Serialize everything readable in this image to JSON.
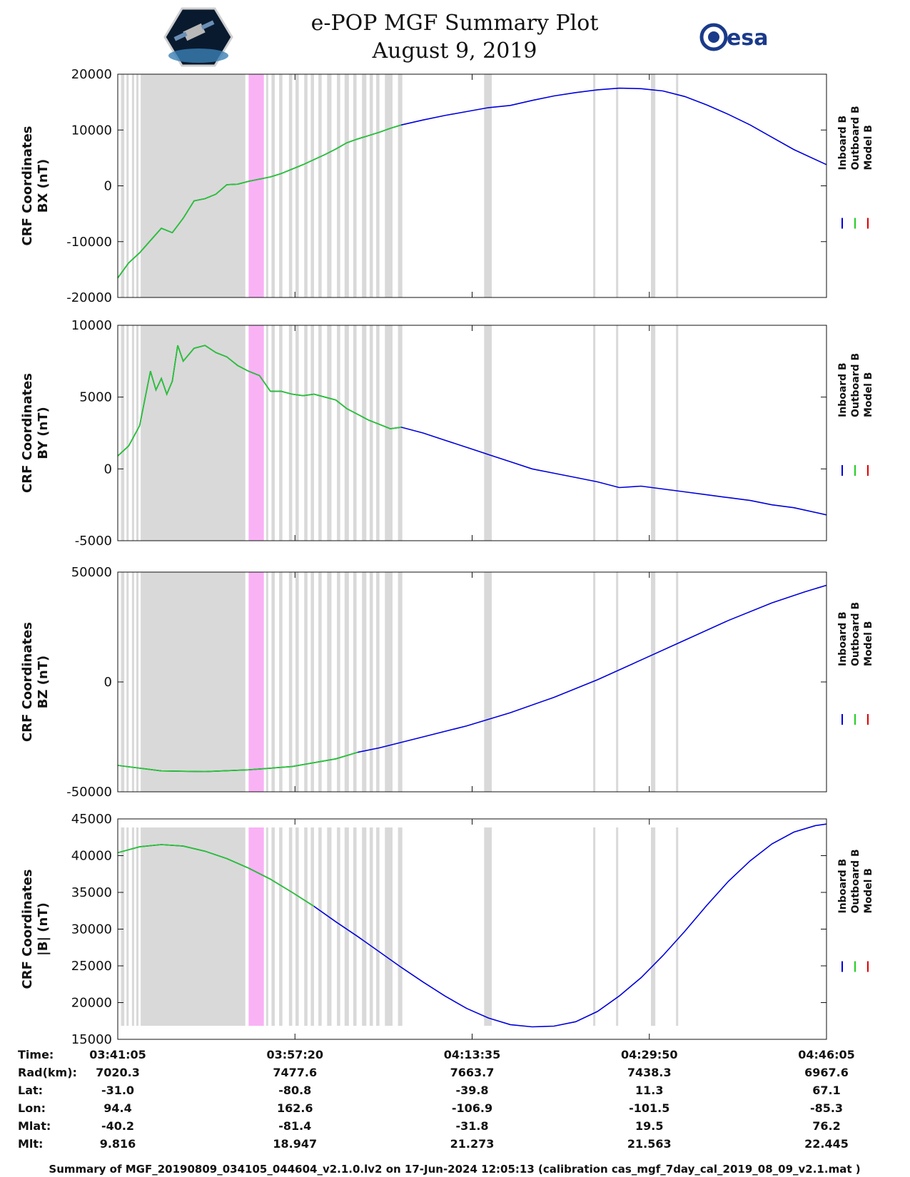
{
  "title": "e-POP MGF Summary Plot",
  "date": "August 9, 2019",
  "esa_logo_text": "esa",
  "colors": {
    "inboard": "#0000dd",
    "outboard": "#22cc22",
    "model": "#dd0000",
    "gap_band": "#d9d9d9",
    "highlight_band": "#f9b3f5"
  },
  "legend": [
    "Inboard B",
    "Outboard B",
    "Model B"
  ],
  "chart_data": [
    {
      "type": "line",
      "ylabel_line1": "CRF Coordinates",
      "ylabel_line2": "BX (nT)",
      "ylim": [
        -20000,
        20000
      ],
      "yticks": [
        -20000,
        -10000,
        0,
        10000,
        20000
      ],
      "green_end_minute": 26,
      "x": [
        0,
        1,
        2,
        3,
        4,
        5,
        6,
        7,
        8,
        9,
        10,
        11,
        12,
        13,
        14,
        15,
        16,
        17,
        18,
        19,
        20,
        21,
        22,
        23,
        24,
        25,
        26,
        28,
        30,
        32,
        34,
        36,
        38,
        40,
        42,
        44,
        46,
        48,
        50,
        52,
        54,
        56,
        58,
        60,
        62,
        65
      ],
      "y": [
        -16500,
        -13800,
        -12000,
        -9800,
        -7600,
        -8400,
        -5800,
        -2700,
        -2300,
        -1500,
        200,
        300,
        800,
        1200,
        1600,
        2200,
        3000,
        3800,
        4700,
        5600,
        6600,
        7700,
        8400,
        9000,
        9600,
        10300,
        10900,
        11800,
        12600,
        13300,
        14000,
        14400,
        15300,
        16100,
        16700,
        17200,
        17500,
        17400,
        17000,
        16000,
        14500,
        12800,
        10900,
        8700,
        6500,
        3800
      ]
    },
    {
      "type": "line",
      "ylabel_line1": "CRF Coordinates",
      "ylabel_line2": "BY (nT)",
      "ylim": [
        -5000,
        10000
      ],
      "yticks": [
        -5000,
        0,
        5000,
        10000
      ],
      "green_end_minute": 26,
      "x": [
        0,
        1,
        2,
        3,
        3.5,
        4,
        4.5,
        5,
        5.5,
        6,
        7,
        8,
        9,
        10,
        11,
        12,
        13,
        14,
        15,
        16,
        17,
        18,
        19,
        20,
        21,
        22,
        23,
        24,
        25,
        26,
        28,
        30,
        32,
        34,
        36,
        38,
        40,
        42,
        44,
        46,
        48,
        50,
        52,
        54,
        56,
        58,
        60,
        62,
        65
      ],
      "y": [
        900,
        1600,
        3000,
        6800,
        5500,
        6300,
        5200,
        6100,
        8600,
        7500,
        8400,
        8600,
        8100,
        7800,
        7200,
        6800,
        6500,
        5400,
        5400,
        5200,
        5100,
        5200,
        5000,
        4800,
        4200,
        3800,
        3400,
        3100,
        2800,
        2900,
        2500,
        2000,
        1500,
        1000,
        500,
        0,
        -300,
        -600,
        -900,
        -1300,
        -1200,
        -1400,
        -1600,
        -1800,
        -2000,
        -2200,
        -2500,
        -2700,
        -3200
      ]
    },
    {
      "type": "line",
      "ylabel_line1": "CRF Coordinates",
      "ylabel_line2": "BZ (nT)",
      "ylim": [
        -50000,
        50000
      ],
      "yticks": [
        -50000,
        0,
        50000
      ],
      "green_end_minute": 22,
      "x": [
        0,
        4,
        8,
        12,
        16,
        20,
        22,
        24,
        28,
        32,
        36,
        40,
        44,
        48,
        52,
        56,
        60,
        63,
        65
      ],
      "y": [
        -38000,
        -40500,
        -40800,
        -40000,
        -38500,
        -35000,
        -32000,
        -30000,
        -25000,
        -20000,
        -14000,
        -7000,
        1000,
        10000,
        19000,
        28000,
        36000,
        41000,
        44000
      ]
    },
    {
      "type": "line",
      "ylabel_line1": "CRF Coordinates",
      "ylabel_line2": "|B| (nT)",
      "ylim": [
        15000,
        45000
      ],
      "yticks": [
        15000,
        20000,
        25000,
        30000,
        35000,
        40000,
        45000
      ],
      "green_end_minute": 18,
      "x": [
        0,
        2,
        4,
        6,
        8,
        10,
        12,
        14,
        16,
        18,
        20,
        22,
        24,
        26,
        28,
        30,
        32,
        34,
        36,
        38,
        40,
        42,
        44,
        46,
        48,
        50,
        52,
        54,
        56,
        58,
        60,
        62,
        64,
        65
      ],
      "y": [
        40400,
        41200,
        41500,
        41300,
        40600,
        39600,
        38300,
        36800,
        35000,
        33100,
        31000,
        29000,
        26900,
        24800,
        22800,
        20900,
        19200,
        17900,
        17000,
        16700,
        16800,
        17400,
        18800,
        20900,
        23400,
        26400,
        29700,
        33200,
        36500,
        39300,
        41600,
        43200,
        44100,
        44300
      ]
    }
  ],
  "gap_bands": [
    [
      2.1,
      11.7
    ],
    [
      0.3,
      0.6
    ],
    [
      0.8,
      1.0
    ],
    [
      1.3,
      1.5
    ],
    [
      1.7,
      1.9
    ],
    [
      12.9,
      13.3
    ],
    [
      13.6,
      13.8
    ],
    [
      14.1,
      14.4
    ],
    [
      14.8,
      15.1
    ],
    [
      15.7,
      16.0
    ],
    [
      16.3,
      16.6
    ],
    [
      17.1,
      17.4
    ],
    [
      17.7,
      18.0
    ],
    [
      18.4,
      18.7
    ],
    [
      19.2,
      19.6
    ],
    [
      20.1,
      20.4
    ],
    [
      20.8,
      21.2
    ],
    [
      21.6,
      21.9
    ],
    [
      22.4,
      22.8
    ],
    [
      23.1,
      23.4
    ],
    [
      23.7,
      24.0
    ],
    [
      24.5,
      25.2
    ],
    [
      25.7,
      26.1
    ],
    [
      33.6,
      34.3
    ],
    [
      43.6,
      43.8
    ],
    [
      45.7,
      45.9
    ],
    [
      48.9,
      49.3
    ],
    [
      51.2,
      51.4
    ]
  ],
  "highlight_band": [
    12.0,
    13.4
  ],
  "xticks_minutes": [
    0,
    16.25,
    32.5,
    48.75,
    65
  ],
  "info_table": {
    "labels": [
      "Time:",
      "Rad(km):",
      "Lat:",
      "Lon:",
      "Mlat:",
      "Mlt:"
    ],
    "columns": [
      [
        "03:41:05",
        "7020.3",
        "-31.0",
        "94.4",
        "-40.2",
        "9.816"
      ],
      [
        "03:57:20",
        "7477.6",
        "-80.8",
        "162.6",
        "-81.4",
        "18.947"
      ],
      [
        "04:13:35",
        "7663.7",
        "-39.8",
        "-106.9",
        "-31.8",
        "21.273"
      ],
      [
        "04:29:50",
        "7438.3",
        "11.3",
        "-101.5",
        "19.5",
        "21.563"
      ],
      [
        "04:46:05",
        "6967.6",
        "67.1",
        "-85.3",
        "76.2",
        "22.445"
      ]
    ]
  },
  "footer": "Summary of MGF_20190809_034105_044604_v2.1.0.lv2 on 17-Jun-2024 12:05:13 (calibration cas_mgf_7day_cal_2019_08_09_v2.1.mat )"
}
